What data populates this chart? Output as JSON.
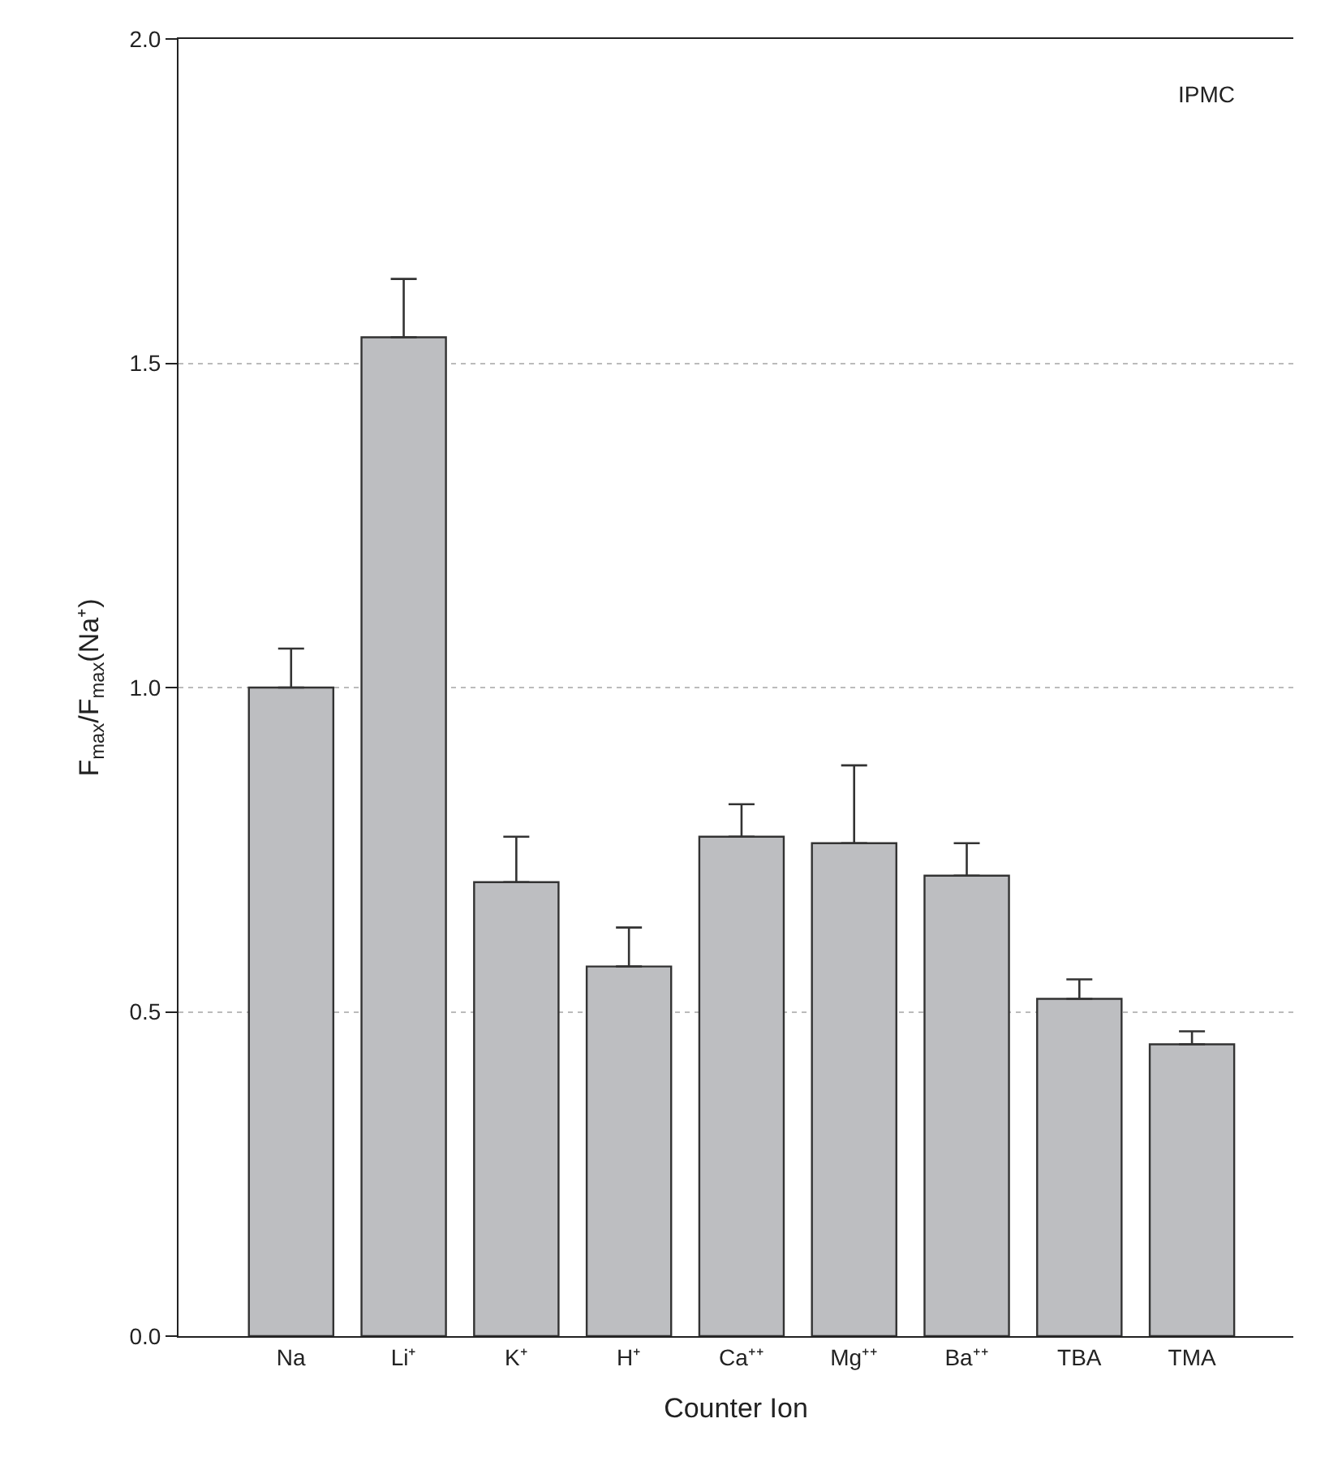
{
  "chart_data": {
    "type": "bar",
    "xlabel": "Counter Ion",
    "ylabel": "F$_{max}$/F$_{max}$(Na⁺)",
    "categories": [
      "Na",
      "Li⁺",
      "K⁺",
      "H⁺",
      "Ca⁺⁺",
      "Mg⁺⁺",
      "Ba⁺⁺",
      "TBA",
      "TMA"
    ],
    "values": [
      1.0,
      1.54,
      0.7,
      0.57,
      0.77,
      0.76,
      0.71,
      0.52,
      0.45
    ],
    "errors": [
      [
        1.0,
        1.06
      ],
      [
        1.54,
        1.63
      ],
      [
        0.7,
        0.77
      ],
      [
        0.57,
        0.63
      ],
      [
        0.77,
        0.82
      ],
      [
        0.76,
        0.88
      ],
      [
        0.71,
        0.76
      ],
      [
        0.52,
        0.55
      ],
      [
        0.45,
        0.47
      ]
    ],
    "color": "#bdbec1",
    "ylim": [
      0,
      2.0
    ],
    "yticks": [
      {
        "value": 0,
        "label": "0.0"
      },
      {
        "value": 0.5,
        "label": "0.5"
      },
      {
        "value": 1.0,
        "label": "1.0"
      },
      {
        "value": 1.5,
        "label": "1.5"
      },
      {
        "value": 2.0,
        "label": "2.0"
      }
    ],
    "grid": "y",
    "annotations": [
      "IPMC"
    ]
  }
}
